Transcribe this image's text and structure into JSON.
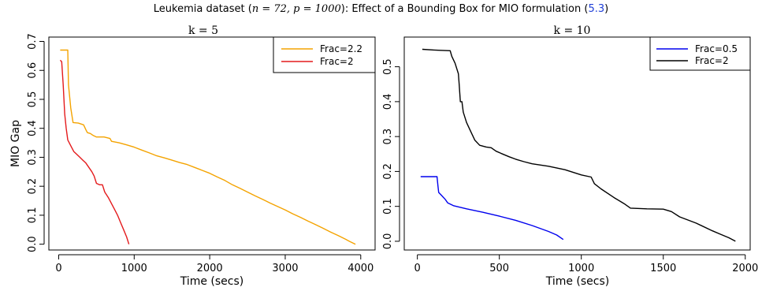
{
  "figure": {
    "title_prefix": "Leukemia dataset (",
    "title_math": "n = 72, p = 1000",
    "title_mid": "): Effect of a Bounding Box for MIO formulation (",
    "title_ref": "5.3",
    "title_suffix": ")",
    "ref_color": "#1f3fd8"
  },
  "chart_data": [
    {
      "type": "line",
      "title": "k = 5",
      "xlabel": "Time (secs)",
      "ylabel": "MIO Gap",
      "xlim": [
        -130,
        4190
      ],
      "ylim": [
        -0.02,
        0.715
      ],
      "xticks": [
        0,
        1000,
        2000,
        3000,
        4000
      ],
      "yticks": [
        0.0,
        0.1,
        0.2,
        0.3,
        0.4,
        0.5,
        0.6,
        0.7
      ],
      "ytick_labels": [
        "0.0",
        "0.1",
        "0.2",
        "0.3",
        "0.4",
        "0.5",
        "0.6",
        "0.7"
      ],
      "grid": false,
      "legend_position": "top-right",
      "series": [
        {
          "name": "Frac=2.2",
          "color": "#f4a300",
          "points": [
            [
              20,
              0.67
            ],
            [
              120,
              0.67
            ],
            [
              130,
              0.55
            ],
            [
              160,
              0.47
            ],
            [
              190,
              0.42
            ],
            [
              260,
              0.418
            ],
            [
              330,
              0.412
            ],
            [
              360,
              0.395
            ],
            [
              380,
              0.385
            ],
            [
              420,
              0.382
            ],
            [
              460,
              0.375
            ],
            [
              500,
              0.37
            ],
            [
              600,
              0.37
            ],
            [
              680,
              0.365
            ],
            [
              700,
              0.355
            ],
            [
              800,
              0.35
            ],
            [
              900,
              0.343
            ],
            [
              1000,
              0.335
            ],
            [
              1100,
              0.325
            ],
            [
              1200,
              0.315
            ],
            [
              1300,
              0.305
            ],
            [
              1400,
              0.298
            ],
            [
              1500,
              0.29
            ],
            [
              1600,
              0.282
            ],
            [
              1700,
              0.275
            ],
            [
              1800,
              0.265
            ],
            [
              1900,
              0.255
            ],
            [
              2000,
              0.245
            ],
            [
              2100,
              0.232
            ],
            [
              2200,
              0.22
            ],
            [
              2300,
              0.205
            ],
            [
              2400,
              0.193
            ],
            [
              2500,
              0.18
            ],
            [
              2600,
              0.167
            ],
            [
              2700,
              0.155
            ],
            [
              2800,
              0.142
            ],
            [
              2900,
              0.13
            ],
            [
              3000,
              0.118
            ],
            [
              3100,
              0.105
            ],
            [
              3200,
              0.093
            ],
            [
              3300,
              0.08
            ],
            [
              3400,
              0.068
            ],
            [
              3500,
              0.055
            ],
            [
              3600,
              0.042
            ],
            [
              3700,
              0.03
            ],
            [
              3800,
              0.017
            ],
            [
              3850,
              0.01
            ],
            [
              3930,
              0.0
            ]
          ]
        },
        {
          "name": "Frac=2",
          "color": "#e41a1c",
          "points": [
            [
              20,
              0.635
            ],
            [
              40,
              0.63
            ],
            [
              60,
              0.55
            ],
            [
              80,
              0.45
            ],
            [
              100,
              0.4
            ],
            [
              120,
              0.36
            ],
            [
              160,
              0.34
            ],
            [
              200,
              0.32
            ],
            [
              240,
              0.31
            ],
            [
              280,
              0.3
            ],
            [
              320,
              0.29
            ],
            [
              360,
              0.28
            ],
            [
              400,
              0.265
            ],
            [
              440,
              0.25
            ],
            [
              470,
              0.235
            ],
            [
              500,
              0.21
            ],
            [
              540,
              0.205
            ],
            [
              580,
              0.205
            ],
            [
              610,
              0.18
            ],
            [
              660,
              0.16
            ],
            [
              700,
              0.14
            ],
            [
              740,
              0.12
            ],
            [
              780,
              0.1
            ],
            [
              820,
              0.075
            ],
            [
              860,
              0.05
            ],
            [
              900,
              0.025
            ],
            [
              930,
              0.0
            ]
          ]
        }
      ]
    },
    {
      "type": "line",
      "title": "k = 10",
      "xlabel": "Time (secs)",
      "ylabel": "",
      "xlim": [
        -80,
        2030
      ],
      "ylim": [
        -0.025,
        0.585
      ],
      "xticks": [
        0,
        500,
        1000,
        1500,
        2000
      ],
      "yticks": [
        0.0,
        0.1,
        0.2,
        0.3,
        0.4,
        0.5
      ],
      "ytick_labels": [
        "0.0",
        "0.1",
        "0.2",
        "0.3",
        "0.4",
        "0.5"
      ],
      "grid": false,
      "legend_position": "top-right",
      "series": [
        {
          "name": "Frac=0.5",
          "color": "#0000ee",
          "points": [
            [
              20,
              0.185
            ],
            [
              120,
              0.185
            ],
            [
              125,
              0.16
            ],
            [
              130,
              0.14
            ],
            [
              150,
              0.13
            ],
            [
              170,
              0.12
            ],
            [
              185,
              0.11
            ],
            [
              220,
              0.102
            ],
            [
              300,
              0.093
            ],
            [
              400,
              0.083
            ],
            [
              500,
              0.072
            ],
            [
              600,
              0.06
            ],
            [
              700,
              0.045
            ],
            [
              800,
              0.028
            ],
            [
              850,
              0.018
            ],
            [
              890,
              0.005
            ]
          ]
        },
        {
          "name": "Frac=2",
          "color": "#000000",
          "points": [
            [
              30,
              0.55
            ],
            [
              100,
              0.548
            ],
            [
              140,
              0.547
            ],
            [
              200,
              0.546
            ],
            [
              210,
              0.53
            ],
            [
              230,
              0.51
            ],
            [
              250,
              0.48
            ],
            [
              255,
              0.45
            ],
            [
              262,
              0.4
            ],
            [
              272,
              0.4
            ],
            [
              280,
              0.37
            ],
            [
              300,
              0.34
            ],
            [
              330,
              0.31
            ],
            [
              350,
              0.29
            ],
            [
              380,
              0.275
            ],
            [
              420,
              0.27
            ],
            [
              450,
              0.268
            ],
            [
              480,
              0.258
            ],
            [
              520,
              0.25
            ],
            [
              560,
              0.242
            ],
            [
              600,
              0.235
            ],
            [
              650,
              0.228
            ],
            [
              700,
              0.222
            ],
            [
              800,
              0.215
            ],
            [
              900,
              0.205
            ],
            [
              1000,
              0.19
            ],
            [
              1060,
              0.184
            ],
            [
              1080,
              0.165
            ],
            [
              1120,
              0.15
            ],
            [
              1200,
              0.125
            ],
            [
              1260,
              0.108
            ],
            [
              1300,
              0.095
            ],
            [
              1400,
              0.093
            ],
            [
              1500,
              0.092
            ],
            [
              1550,
              0.085
            ],
            [
              1600,
              0.07
            ],
            [
              1700,
              0.052
            ],
            [
              1800,
              0.03
            ],
            [
              1850,
              0.02
            ],
            [
              1900,
              0.01
            ],
            [
              1940,
              0.0
            ]
          ]
        }
      ]
    }
  ]
}
